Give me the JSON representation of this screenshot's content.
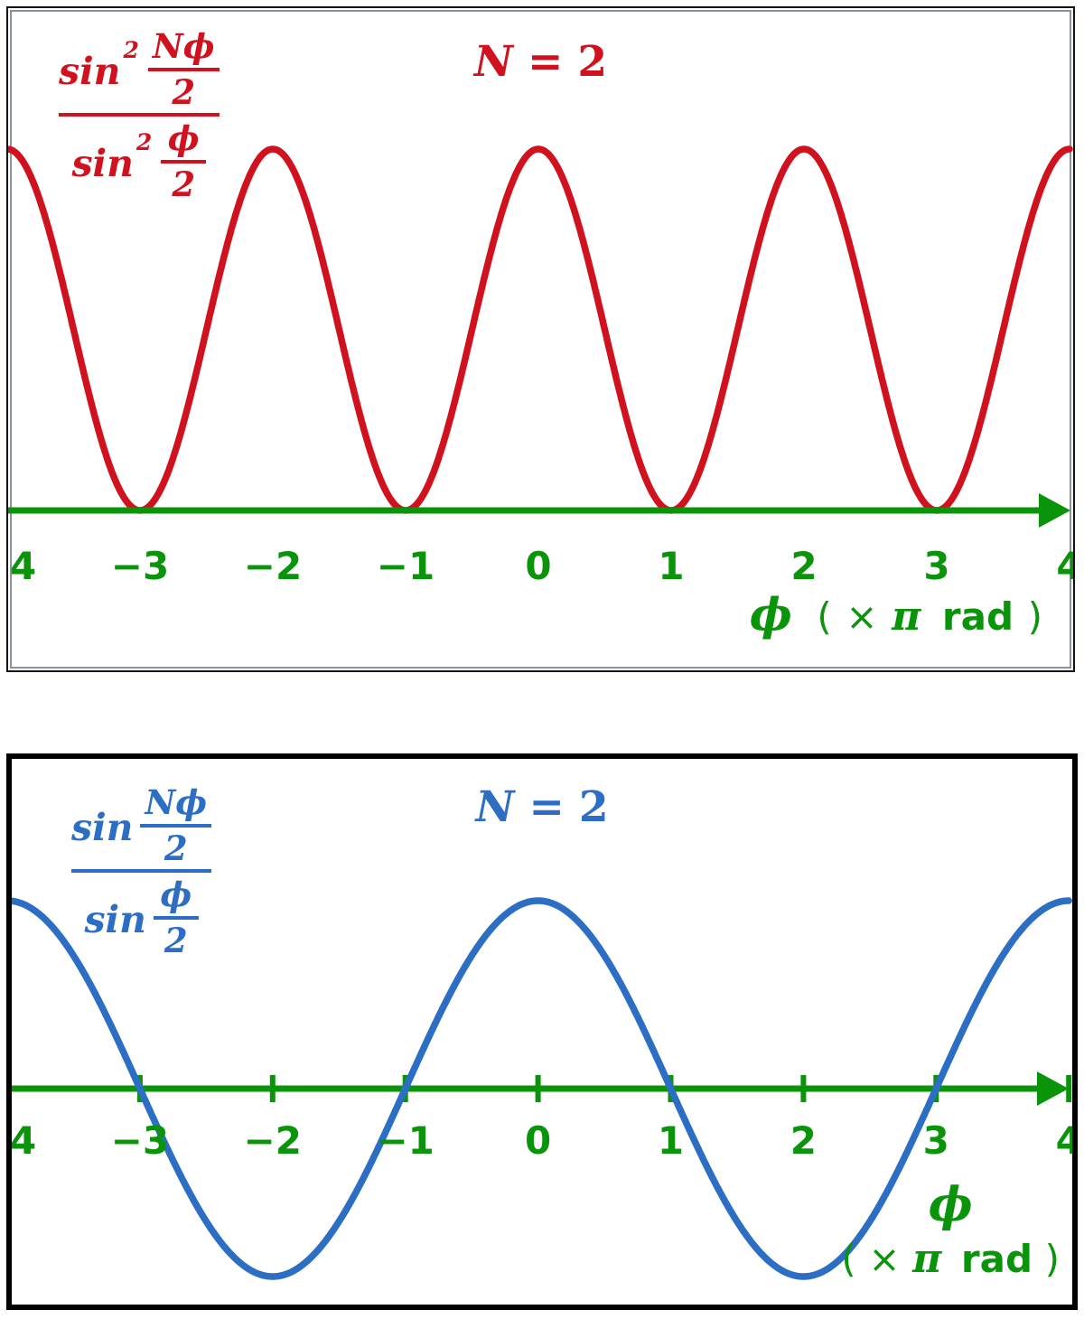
{
  "axis": {
    "color": "#0a940a",
    "tick_labels": [
      "−4",
      "−3",
      "−2",
      "−1",
      "0",
      "1",
      "2",
      "3",
      "4"
    ],
    "phi": "ϕ",
    "unit_open": "(",
    "unit_times": "×",
    "unit_pi": "π",
    "unit_rad": "rad",
    "unit_close": ")"
  },
  "top_panel": {
    "accent": "#cf121e",
    "title": {
      "lhs": "N",
      "eq": "=",
      "rhs": "2"
    },
    "formula": {
      "func": "sin",
      "sup": "2",
      "num_frac_top": "Nϕ",
      "num_frac_bot": "2",
      "den_func": "sin",
      "den_sup": "2",
      "den_frac_top": "ϕ",
      "den_frac_bot": "2"
    }
  },
  "bottom_panel": {
    "accent": "#2d6ec5",
    "title": {
      "lhs": "N",
      "eq": "=",
      "rhs": "2"
    },
    "formula": {
      "func": "sin",
      "num_frac_top": "Nϕ",
      "num_frac_bot": "2",
      "den_func": "sin",
      "den_frac_top": "ϕ",
      "den_frac_bot": "2"
    }
  },
  "chart_data": [
    {
      "type": "line",
      "panel": "top",
      "title": "N = 2",
      "function_label": "sin²(Nϕ/2) / sin²(ϕ/2)",
      "N": 2,
      "squared": true,
      "x_units": "π rad",
      "xlabel": "ϕ ( × π rad )",
      "x_range": [
        -4,
        4
      ],
      "y_range": [
        0,
        4
      ],
      "x_ticks": [
        -4,
        -3,
        -2,
        -1,
        0,
        1,
        2,
        3,
        4
      ],
      "sample_x": [
        -4,
        -3,
        -2,
        -1,
        0,
        1,
        2,
        3,
        4
      ],
      "sample_y": [
        4,
        0,
        4,
        0,
        4,
        0,
        4,
        0,
        4
      ],
      "line_color": "#cf121e",
      "axis_color": "#0a940a",
      "axis_ticks_visible": false,
      "grid": false,
      "legend_position": "none"
    },
    {
      "type": "line",
      "panel": "bottom",
      "title": "N = 2",
      "function_label": "sin(Nϕ/2) / sin(ϕ/2)",
      "N": 2,
      "squared": false,
      "x_units": "π rad",
      "xlabel": "ϕ ( × π rad )",
      "x_range": [
        -4,
        4
      ],
      "y_range": [
        -2,
        2
      ],
      "x_ticks": [
        -4,
        -3,
        -2,
        -1,
        0,
        1,
        2,
        3,
        4
      ],
      "sample_x": [
        -4,
        -3,
        -2,
        -1,
        0,
        1,
        2,
        3,
        4
      ],
      "sample_y": [
        2,
        0,
        -2,
        0,
        2,
        0,
        -2,
        0,
        2
      ],
      "line_color": "#2d6ec5",
      "axis_color": "#0a940a",
      "axis_ticks_visible": true,
      "grid": false,
      "legend_position": "none"
    }
  ]
}
